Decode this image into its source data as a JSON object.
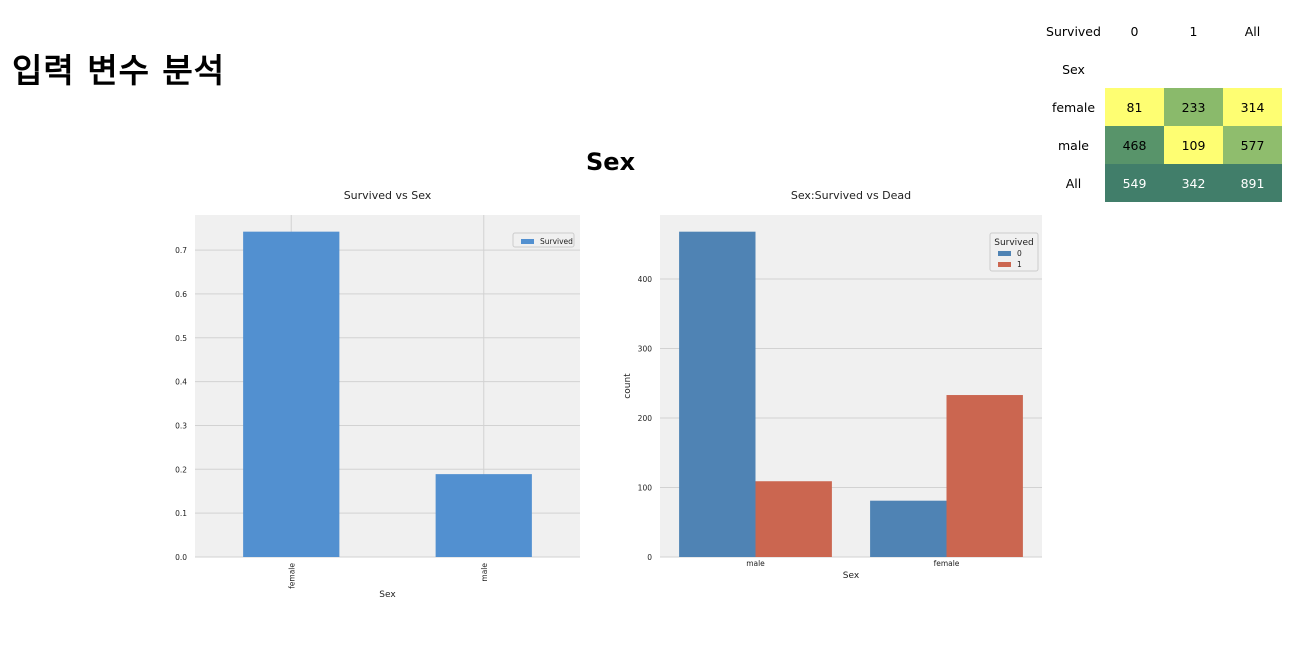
{
  "page": {
    "title": "입력 변수 분석",
    "section_title": "Sex"
  },
  "crosstab": {
    "corner_label": "Survived",
    "index_label": "Sex",
    "columns": [
      "0",
      "1",
      "All"
    ],
    "rows": [
      {
        "label": "female",
        "values": [
          "81",
          "233",
          "314"
        ],
        "colors": [
          "#fefe72",
          "#8aba6b",
          "#fefe72"
        ],
        "text_colors": [
          "#000000",
          "#000000",
          "#000000"
        ]
      },
      {
        "label": "male",
        "values": [
          "468",
          "109",
          "577"
        ],
        "colors": [
          "#58946a",
          "#fefe72",
          "#8fbd6d"
        ],
        "text_colors": [
          "#000000",
          "#000000",
          "#000000"
        ]
      },
      {
        "label": "All",
        "values": [
          "549",
          "342",
          "891"
        ],
        "colors": [
          "#417e6a",
          "#417e6a",
          "#417e6a"
        ],
        "text_colors": [
          "#ffffff",
          "#ffffff",
          "#ffffff"
        ]
      }
    ]
  },
  "chart_data": [
    {
      "type": "bar",
      "title": "Survived vs Sex",
      "xlabel": "Sex",
      "ylabel": "",
      "categories": [
        "female",
        "male"
      ],
      "series": [
        {
          "name": "Survived",
          "values": [
            0.742,
            0.189
          ],
          "color": "#5290d0"
        }
      ],
      "ylim": [
        0,
        0.78
      ],
      "yticks": [
        "0.0",
        "0.1",
        "0.2",
        "0.3",
        "0.4",
        "0.5",
        "0.6",
        "0.7"
      ],
      "ytick_values": [
        0,
        0.1,
        0.2,
        0.3,
        0.4,
        0.5,
        0.6,
        0.7
      ],
      "legend": "top-right",
      "grid": true
    },
    {
      "type": "bar",
      "title": "Sex:Survived vs Dead",
      "xlabel": "Sex",
      "ylabel": "count",
      "categories": [
        "male",
        "female"
      ],
      "legend_title": "Survived",
      "series": [
        {
          "name": "0",
          "values": [
            468,
            81
          ],
          "color": "#4f83b4"
        },
        {
          "name": "1",
          "values": [
            109,
            233
          ],
          "color": "#cb6650"
        }
      ],
      "ylim": [
        0,
        492
      ],
      "yticks": [
        "0",
        "100",
        "200",
        "300",
        "400"
      ],
      "ytick_values": [
        0,
        100,
        200,
        300,
        400
      ],
      "legend": "top-right",
      "grid": true
    }
  ]
}
